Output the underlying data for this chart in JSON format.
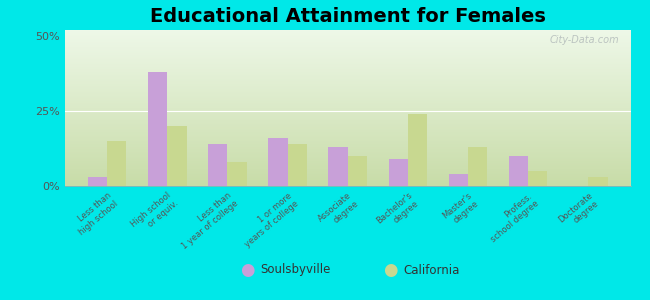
{
  "title": "Educational Attainment for Females",
  "categories": [
    "Less than\nhigh school",
    "High school\nor equiv.",
    "Less than\n1 year of college",
    "1 or more\nyears of college",
    "Associate\ndegree",
    "Bachelor's\ndegree",
    "Master's\ndegree",
    "Profess.\nschool degree",
    "Doctorate\ndegree"
  ],
  "soulsbyville": [
    3,
    38,
    14,
    16,
    13,
    9,
    4,
    10,
    0
  ],
  "california": [
    15,
    20,
    8,
    14,
    10,
    24,
    13,
    5,
    3
  ],
  "color_soulsbyville": "#c8a0d8",
  "color_california": "#c8d890",
  "background_plot_top": "#d8e8c0",
  "background_plot_bottom": "#f0f8e8",
  "background_fig": "#00e8e8",
  "yticks": [
    0,
    25,
    50
  ],
  "ylim": [
    0,
    52
  ],
  "title_fontsize": 14,
  "bar_width": 0.32,
  "watermark": "City-Data.com"
}
